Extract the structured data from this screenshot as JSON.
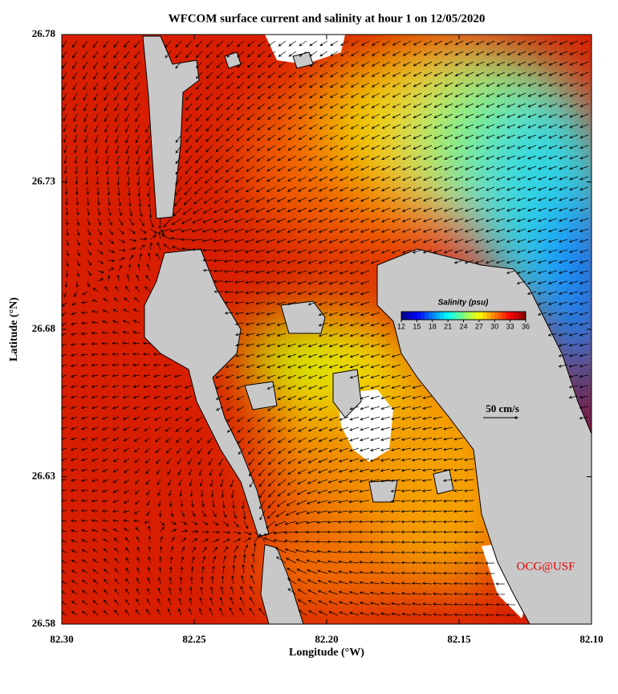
{
  "map": {
    "title": "WFCOM surface current and salinity at hour 1 on 12/05/2020",
    "xlabel": "Longitude (°W)",
    "ylabel": "Latitude (°N)",
    "xlim": [
      82.3,
      82.1
    ],
    "ylim": [
      26.58,
      26.78
    ],
    "xticks": [
      {
        "value": 82.3,
        "label": "82.30"
      },
      {
        "value": 82.25,
        "label": "82.25"
      },
      {
        "value": 82.2,
        "label": "82.20"
      },
      {
        "value": 82.15,
        "label": "82.15"
      },
      {
        "value": 82.1,
        "label": "82.10"
      }
    ],
    "yticks": [
      26.58,
      26.63,
      26.68,
      26.73,
      26.78
    ],
    "colorbar": {
      "label": "Salinity (psu)",
      "lim": [
        12,
        36
      ],
      "ticks": [
        12,
        15,
        18,
        21,
        24,
        27,
        30,
        33,
        36
      ]
    },
    "scale_label": "50 cm/s",
    "credit": "OCG@USF"
  }
}
